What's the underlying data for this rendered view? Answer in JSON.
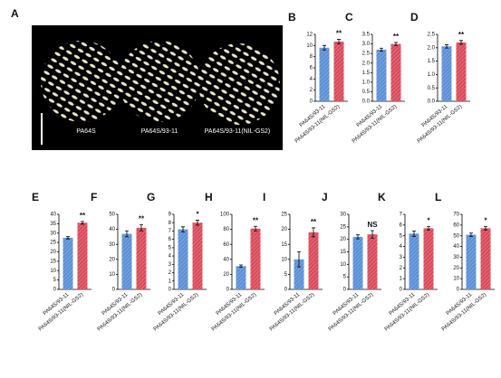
{
  "photo": {
    "label": "A",
    "captions": [
      "PA64S",
      "PA64S/93-11",
      "PA64S/93-11(NIL-GS2)"
    ]
  },
  "chart_data": [
    {
      "type": "bar",
      "label": "B",
      "categories": [
        "PA64S/93-11",
        "PA64S/93-11(NIL-GS2)"
      ],
      "values": [
        9.6,
        10.7
      ],
      "errors": [
        0.4,
        0.4
      ],
      "colors": [
        "#5b8fd6",
        "#d94a5a"
      ],
      "significance": "**",
      "ylim": [
        0,
        12
      ],
      "yticks": [
        0,
        2,
        4,
        6,
        8,
        10,
        12
      ]
    },
    {
      "type": "bar",
      "label": "C",
      "categories": [
        "PA64S/93-11",
        "PA64S/93-11(NIL-GS2)"
      ],
      "values": [
        2.7,
        3.0
      ],
      "errors": [
        0.08,
        0.08
      ],
      "colors": [
        "#5b8fd6",
        "#d94a5a"
      ],
      "significance": "**",
      "ylim": [
        0,
        3.5
      ],
      "yticks": [
        {
          "value": 0,
          "label": "0.0"
        },
        0.5,
        {
          "value": 1,
          "label": "1.0"
        },
        1.5,
        {
          "value": 2,
          "label": "2.0"
        },
        2.5,
        {
          "value": 3,
          "label": "3.0"
        },
        3.5
      ]
    },
    {
      "type": "bar",
      "label": "D",
      "categories": [
        "PA64S/93-11",
        "PA64S/93-11(NIL-GS2)"
      ],
      "values": [
        2.05,
        2.2
      ],
      "errors": [
        0.06,
        0.07
      ],
      "colors": [
        "#5b8fd6",
        "#d94a5a"
      ],
      "significance": "**",
      "ylim": [
        0,
        2.5
      ],
      "yticks": [
        {
          "value": 0,
          "label": "0.0"
        },
        0.5,
        {
          "value": 1,
          "label": "1.0"
        },
        1.5,
        {
          "value": 2,
          "label": "2.0"
        },
        2.5
      ]
    },
    {
      "type": "bar",
      "label": "E",
      "categories": [
        "PA64S/93-11",
        "PA64S/93-11(NIL-GS2)"
      ],
      "values": [
        27.5,
        35.5
      ],
      "errors": [
        0.6,
        0.7
      ],
      "colors": [
        "#5b8fd6",
        "#d94a5a"
      ],
      "significance": "**",
      "ylim": [
        0,
        40
      ],
      "yticks": [
        0,
        5,
        10,
        15,
        20,
        25,
        30,
        35,
        40
      ]
    },
    {
      "type": "bar",
      "label": "F",
      "categories": [
        "PA64S/93-11",
        "PA64S/93-11(NIL-GS2)"
      ],
      "values": [
        37,
        41
      ],
      "errors": [
        2,
        2
      ],
      "colors": [
        "#5b8fd6",
        "#d94a5a"
      ],
      "significance": "**",
      "ylim": [
        0,
        50
      ],
      "yticks": [
        0,
        10,
        20,
        30,
        40,
        50
      ]
    },
    {
      "type": "bar",
      "label": "G",
      "categories": [
        "PA64S/93-11",
        "PA64S/93-11(NIL-GS2)"
      ],
      "values": [
        7.2,
        8.0
      ],
      "errors": [
        0.3,
        0.3
      ],
      "colors": [
        "#5b8fd6",
        "#d94a5a"
      ],
      "significance": "*",
      "ylim": [
        0,
        9
      ],
      "yticks": [
        0,
        1,
        2,
        3,
        4,
        5,
        6,
        7,
        8,
        9
      ]
    },
    {
      "type": "bar",
      "label": "H",
      "categories": [
        "PA64S/93-11",
        "PA64S/93-11(NIL-GS2)"
      ],
      "values": [
        31,
        81
      ],
      "errors": [
        1.5,
        3
      ],
      "colors": [
        "#5b8fd6",
        "#d94a5a"
      ],
      "significance": "**",
      "ylim": [
        0,
        100
      ],
      "yticks": [
        0,
        20,
        40,
        60,
        80,
        100
      ]
    },
    {
      "type": "bar",
      "label": "I",
      "categories": [
        "PA64S/93-11",
        "PA64S/93-11(NIL-GS2)"
      ],
      "values": [
        10,
        19
      ],
      "errors": [
        2.5,
        1.5
      ],
      "colors": [
        "#5b8fd6",
        "#d94a5a"
      ],
      "significance": "**",
      "ylim": [
        0,
        25
      ],
      "yticks": [
        0,
        5,
        10,
        15,
        20,
        25
      ]
    },
    {
      "type": "bar",
      "label": "J",
      "categories": [
        "PA64S/93-11",
        "PA64S/93-11(NIL-GS2)"
      ],
      "values": [
        21,
        22
      ],
      "errors": [
        0.8,
        1.5
      ],
      "colors": [
        "#5b8fd6",
        "#d94a5a"
      ],
      "significance": "NS",
      "ylim": [
        0,
        30
      ],
      "yticks": [
        0,
        5,
        10,
        15,
        20,
        25,
        30
      ]
    },
    {
      "type": "bar",
      "label": "K",
      "categories": [
        "PA64S/93-11",
        "PA64S/93-11(NIL-GS2)"
      ],
      "values": [
        5.2,
        5.7
      ],
      "errors": [
        0.25,
        0.15
      ],
      "colors": [
        "#5b8fd6",
        "#d94a5a"
      ],
      "significance": "*",
      "ylim": [
        0,
        7
      ],
      "yticks": [
        0,
        1,
        2,
        3,
        4,
        5,
        6,
        7
      ]
    },
    {
      "type": "bar",
      "label": "L",
      "categories": [
        "PA64S/93-11",
        "PA64S/93-11(NIL-GS2)"
      ],
      "values": [
        51,
        57
      ],
      "errors": [
        1.5,
        1.5
      ],
      "colors": [
        "#5b8fd6",
        "#d94a5a"
      ],
      "significance": "*",
      "ylim": [
        0,
        70
      ],
      "yticks": [
        0,
        10,
        20,
        30,
        40,
        50,
        60,
        70
      ]
    }
  ]
}
